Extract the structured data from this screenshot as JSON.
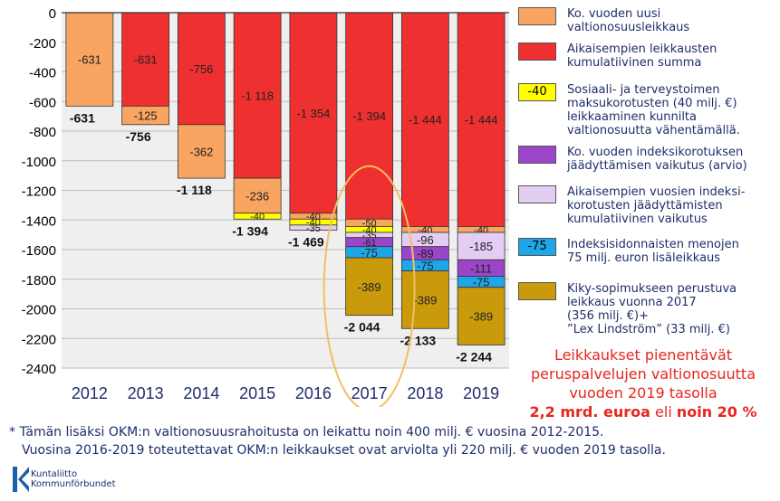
{
  "chart_data": {
    "type": "bar",
    "stacked": true,
    "categories": [
      "2012",
      "2013",
      "2014",
      "2015",
      "2016",
      "2017",
      "2018",
      "2019"
    ],
    "ylim": [
      -2400,
      0
    ],
    "yticks": [
      0,
      -200,
      -400,
      -600,
      -800,
      -1000,
      -1200,
      -1400,
      -1600,
      -1800,
      -2000,
      -2200,
      -2400
    ],
    "series": [
      {
        "name": "Ko. vuoden uusi valtionosuusleikkaus",
        "color": "#f9a460",
        "values": [
          -631,
          -125,
          -362,
          -236,
          -40,
          -50,
          -40,
          -40
        ],
        "labels": [
          "-631",
          "-125",
          "-362",
          "-236",
          "-40",
          "-50",
          "-40",
          "-40"
        ]
      },
      {
        "name": "Aikaisempien leikkausten kumulatiivinen summa",
        "color": "#ee3030",
        "values": [
          0,
          -631,
          -756,
          -1118,
          -1354,
          -1394,
          -1444,
          -1444
        ],
        "labels": [
          "",
          "-631",
          "-756",
          "-1 118",
          "-1 354",
          "-1 394",
          "-1 444",
          "-1 444"
        ]
      },
      {
        "name": "Sosiaali- ja terveystoimen maksukorotusten (40 milj. €) leikkaaminen kunnilta valtionosuutta vähentämällä.",
        "color": "#ffff00",
        "values": [
          0,
          0,
          0,
          -40,
          -40,
          -40,
          0,
          0
        ],
        "labels": [
          "",
          "",
          "",
          "-40",
          "-40",
          "-40",
          "",
          ""
        ]
      },
      {
        "name": "Ko. vuoden indeksikorotuksen jäädyttämisen vaikutus (arvio)",
        "color": "#9b45c8",
        "values": [
          0,
          0,
          0,
          0,
          0,
          -61,
          -89,
          -111
        ],
        "labels": [
          "",
          "",
          "",
          "",
          "",
          "-61",
          "-89",
          "-111"
        ]
      },
      {
        "name": "Aikaisempien vuosien indeksikorotusten jäädyttämisten kumulatiivinen vaikutus",
        "color": "#e3cdf2",
        "values": [
          0,
          0,
          0,
          0,
          -35,
          -35,
          -96,
          -185
        ],
        "labels": [
          "",
          "",
          "",
          "",
          "-35",
          "-35",
          "-96",
          "-185"
        ]
      },
      {
        "name": "Indeksisidonnaisten menojen 75 milj. euron lisäleikkaus",
        "color": "#1ea6e8",
        "values": [
          0,
          0,
          0,
          0,
          0,
          -75,
          -75,
          -75
        ],
        "labels": [
          "",
          "",
          "",
          "",
          "",
          "-75",
          "-75",
          "-75"
        ]
      },
      {
        "name": "Kiky-sopimukseen perustuva leikkaus vuonna 2017 (356 milj. €)+ ”Lex Lindström” (33 milj. €)",
        "color": "#c99a0c",
        "values": [
          0,
          0,
          0,
          0,
          0,
          -389,
          -389,
          -389
        ],
        "labels": [
          "",
          "",
          "",
          "",
          "",
          "-389",
          "-389",
          "-389"
        ]
      }
    ],
    "totals": [
      "-631",
      "-756",
      "-1 118",
      "-1 394",
      "-1 469",
      "-2 044",
      "-2 133",
      "-2 244"
    ],
    "highlight_category": "2017"
  },
  "legend": [
    {
      "swatch_text": "",
      "label": [
        "Ko. vuoden uusi",
        "valtionosuusleikkaus"
      ]
    },
    {
      "swatch_text": "",
      "label": [
        "Aikaisempien leikkausten",
        "kumulatiivinen summa"
      ]
    },
    {
      "swatch_text": "-40",
      "label": [
        "Sosiaali- ja terveystoimen",
        "maksukorotusten (40 milj. €)",
        "leikkaaminen kunnilta",
        "valtionosuutta vähentämällä."
      ]
    },
    {
      "swatch_text": "",
      "label": [
        "Ko. vuoden indeksikorotuksen",
        "jäädyttämisen vaikutus (arvio)"
      ]
    },
    {
      "swatch_text": "",
      "label": [
        "Aikaisempien vuosien indeksi-",
        "korotusten jäädyttämisten",
        "kumulatiivinen vaikutus"
      ]
    },
    {
      "swatch_text": "-75",
      "label": [
        "Indeksisidonnaisten menojen",
        "75 milj. euron lisäleikkaus"
      ]
    },
    {
      "swatch_text": "",
      "label": [
        "Kiky-sopimukseen perustuva",
        "leikkaus vuonna 2017",
        "(356 milj. €)+",
        "”Lex Lindström” (33 milj. €)"
      ]
    }
  ],
  "conclusion": {
    "line1": "Leikkaukset pienentävät",
    "line2": "peruspalvelujen valtionosuutta",
    "line3": "vuoden 2019 tasolla",
    "amount": "2,2 mrd. euroa",
    "middle": " eli ",
    "percent": "noin 20 %"
  },
  "footnote": {
    "line1": "* Tämän lisäksi OKM:n valtionosuusrahoitusta on leikattu noin 400 milj. € vuosina 2012-2015.",
    "line2": "Vuosina 2016-2019 toteutettavat OKM:n leikkaukset ovat arviolta yli 220 milj. € vuoden 2019 tasolla."
  },
  "logo": {
    "line1": "Kuntaliitto",
    "line2": "Kommunförbundet"
  },
  "colors": {
    "text_dark": "#1f2d6b",
    "red_text": "#e8261e",
    "ellipse": "#f0c060"
  }
}
